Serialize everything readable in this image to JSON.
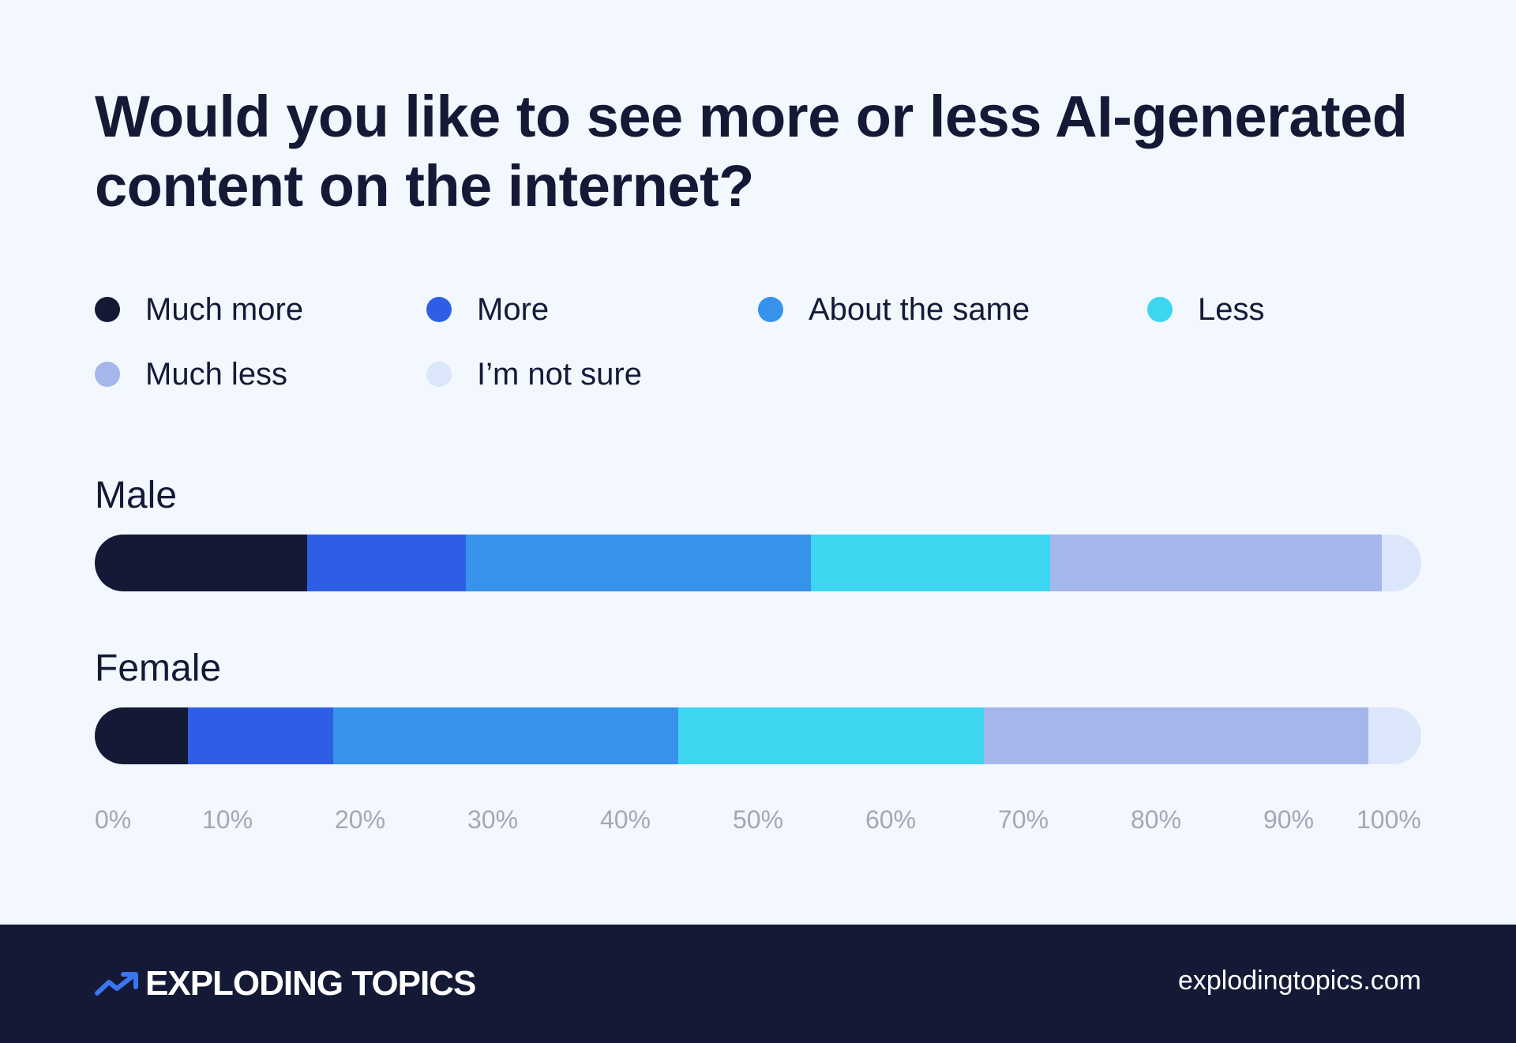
{
  "title": "Would you like to see more or less AI-generated content on the internet?",
  "legend": [
    {
      "label": "Much more",
      "color": "#141a36"
    },
    {
      "label": "More",
      "color": "#2f5ee6"
    },
    {
      "label": "About the same",
      "color": "#3792eb"
    },
    {
      "label": "Less",
      "color": "#3dd6f0"
    },
    {
      "label": "Much less",
      "color": "#a5b6ea"
    },
    {
      "label": "I’m not sure",
      "color": "#dbe6fb"
    }
  ],
  "chart_data": {
    "type": "bar",
    "orientation": "horizontal",
    "stacked": true,
    "title": "Would you like to see more or less AI-generated content on the internet?",
    "categories": [
      "Male",
      "Female"
    ],
    "series": [
      {
        "name": "Much more",
        "values": [
          16,
          7
        ],
        "color": "#141a36"
      },
      {
        "name": "More",
        "values": [
          12,
          11
        ],
        "color": "#2f5ee6"
      },
      {
        "name": "About the same",
        "values": [
          26,
          26
        ],
        "color": "#3792eb"
      },
      {
        "name": "Less",
        "values": [
          18,
          23
        ],
        "color": "#3dd6f0"
      },
      {
        "name": "Much less",
        "values": [
          25,
          29
        ],
        "color": "#a5b6ea"
      },
      {
        "name": "I’m not sure",
        "values": [
          3,
          4
        ],
        "color": "#dbe6fb"
      }
    ],
    "xlim": [
      0,
      100
    ],
    "x_ticks": [
      "0%",
      "10%",
      "20%",
      "30%",
      "40%",
      "50%",
      "60%",
      "70%",
      "80%",
      "90%",
      "100%"
    ],
    "grid": false,
    "legend_position": "top"
  },
  "footer": {
    "brand": "EXPLODING TOPICS",
    "url": "explodingtopics.com"
  }
}
